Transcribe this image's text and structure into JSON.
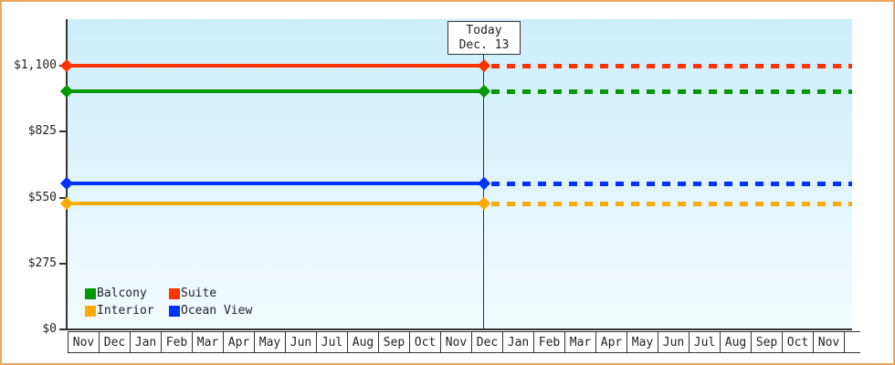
{
  "palette": {
    "frame_border": "#eda55c",
    "plot_gradient_top": "#cdeefb",
    "plot_gradient_bottom": "#f2fbff",
    "axis_color": "#333333",
    "text_color": "#222222",
    "annotation_bg": "#ffffff"
  },
  "legend": {
    "items": [
      {
        "label": "Balcony",
        "color": "#009900"
      },
      {
        "label": "Suite",
        "color": "#ff3300"
      },
      {
        "label": "Interior",
        "color": "#ffaa00"
      },
      {
        "label": "Ocean View",
        "color": "#0033ff"
      }
    ]
  },
  "chart_data": {
    "type": "line",
    "title": "",
    "xlabel": "",
    "ylabel": "",
    "grid": false,
    "legend_position": "inside-bottom-left",
    "x_categories": [
      "Nov",
      "Dec",
      "Jan",
      "Feb",
      "Mar",
      "Apr",
      "May",
      "Jun",
      "Jul",
      "Aug",
      "Sep",
      "Oct",
      "Nov",
      "Dec",
      "Jan",
      "Feb",
      "Mar",
      "Apr",
      "May",
      "Jun",
      "Jul",
      "Aug",
      "Sep",
      "Oct",
      "Nov"
    ],
    "y_axis": {
      "ticks": [
        {
          "label": "$0",
          "value": 0
        },
        {
          "label": "$275",
          "value": 275
        },
        {
          "label": "$550",
          "value": 550
        },
        {
          "label": "$825",
          "value": 825
        },
        {
          "label": "$1,100",
          "value": 1100
        }
      ],
      "ylim": [
        0,
        1295
      ]
    },
    "series": [
      {
        "name": "Suite",
        "color": "#ff3300",
        "value": 1100,
        "style": "solid-history-dashed-forecast"
      },
      {
        "name": "Balcony",
        "color": "#009900",
        "value": 995,
        "style": "solid-history-dashed-forecast"
      },
      {
        "name": "Ocean View",
        "color": "#0033ff",
        "value": 610,
        "style": "solid-history-dashed-forecast"
      },
      {
        "name": "Interior",
        "color": "#ffaa00",
        "value": 525,
        "style": "solid-history-dashed-forecast"
      }
    ],
    "today": {
      "label": "Today",
      "date": "Dec. 13",
      "month_index": 13,
      "month_fraction": 0.42
    }
  }
}
